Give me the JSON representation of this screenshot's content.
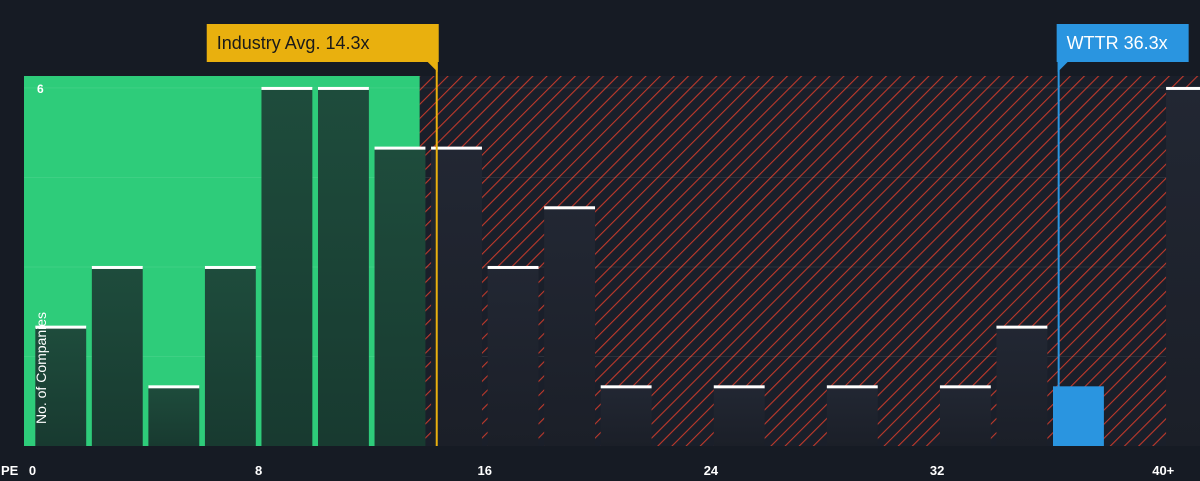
{
  "chart_data": {
    "type": "bar",
    "ylabel": "No. of Companies",
    "xlabel": "PE",
    "x_tick_labels": [
      "0",
      "8",
      "16",
      "24",
      "32",
      "40+"
    ],
    "x_tick_values": [
      0,
      8,
      16,
      24,
      32,
      40
    ],
    "xlim": [
      -0.3,
      41.3
    ],
    "ylim": [
      0,
      6.2
    ],
    "y_tick_label": "6",
    "y_tick_value": 6,
    "grid": true,
    "bin_width": 2,
    "bins": [
      {
        "x_start": 0,
        "value": 2
      },
      {
        "x_start": 2,
        "value": 3
      },
      {
        "x_start": 4,
        "value": 1
      },
      {
        "x_start": 6,
        "value": 3
      },
      {
        "x_start": 8,
        "value": 6
      },
      {
        "x_start": 10,
        "value": 6
      },
      {
        "x_start": 12,
        "value": 5
      },
      {
        "x_start": 14,
        "value": 5
      },
      {
        "x_start": 16,
        "value": 3
      },
      {
        "x_start": 18,
        "value": 4
      },
      {
        "x_start": 20,
        "value": 1
      },
      {
        "x_start": 24,
        "value": 1
      },
      {
        "x_start": 28,
        "value": 1
      },
      {
        "x_start": 32,
        "value": 1
      },
      {
        "x_start": 34,
        "value": 2
      },
      {
        "x_start": 36,
        "value": 1,
        "highlight": true
      },
      {
        "x_start": 40,
        "value": 6
      }
    ],
    "fair_zone_end": 13.7,
    "industry_avg": {
      "label": "Industry Avg. 14.3x",
      "value": 14.3
    },
    "company": {
      "label": "WTTR 36.3x",
      "value": 36.3
    },
    "colors": {
      "background": "#161b24",
      "fair_zone": "#2ecc7a",
      "bar": "#1e4c3c",
      "bar_over": "#1f2430",
      "hatch": "#c0392b",
      "highlight": "#2a95e0",
      "industry_marker": "#e9b00e",
      "axis_text": "#ffffff",
      "grid": "#2b3140"
    }
  }
}
